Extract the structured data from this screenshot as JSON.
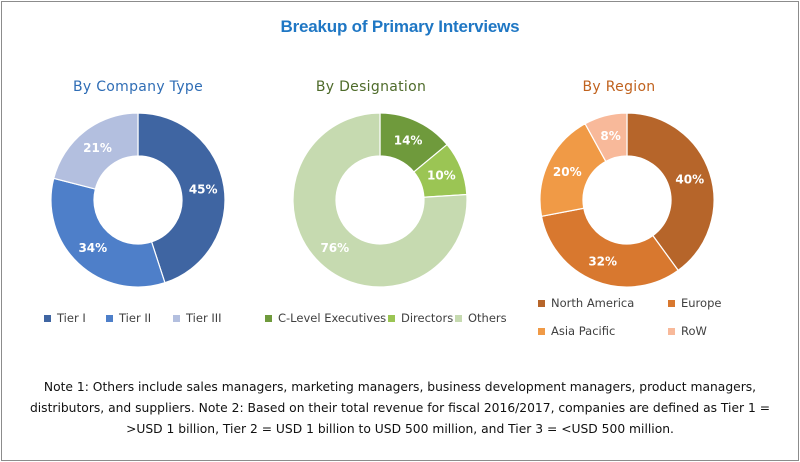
{
  "title": "Breakup of Primary Interviews",
  "chart_data": [
    {
      "type": "pie",
      "title": "By Company Type",
      "title_color": "#2f6db5",
      "categories": [
        "Tier I",
        "Tier II",
        "Tier III"
      ],
      "values": [
        45,
        34,
        21
      ],
      "labels": [
        "45%",
        "34%",
        "21%"
      ],
      "colors": [
        "#3f65a2",
        "#4e7fc9",
        "#b3bfdf"
      ]
    },
    {
      "type": "pie",
      "title": "By Designation",
      "title_color": "#4e6b2a",
      "categories": [
        "C-Level Executives",
        "Directors",
        "Others"
      ],
      "values": [
        14,
        10,
        76
      ],
      "labels": [
        "14%",
        "10%",
        "76%"
      ],
      "colors": [
        "#6f9a3c",
        "#9bc554",
        "#c6dab0"
      ]
    },
    {
      "type": "pie",
      "title": "By Region",
      "title_color": "#c0621e",
      "categories": [
        "North America",
        "Europe",
        "Asia Pacific",
        "RoW"
      ],
      "values": [
        40,
        32,
        20,
        8
      ],
      "labels": [
        "40%",
        "32%",
        "20%",
        "8%"
      ],
      "colors": [
        "#b6652a",
        "#d8782f",
        "#f09a46",
        "#f8b99a"
      ]
    }
  ],
  "note": "Note 1: Others include sales managers, marketing managers, business development managers, product managers, distributors, and suppliers. Note 2: Based on their total revenue for fiscal 2016/2017, companies are defined as Tier 1 = >USD 1 billion, Tier 2 = USD 1 billion to USD 500 million, and Tier 3 = <USD 500 million."
}
